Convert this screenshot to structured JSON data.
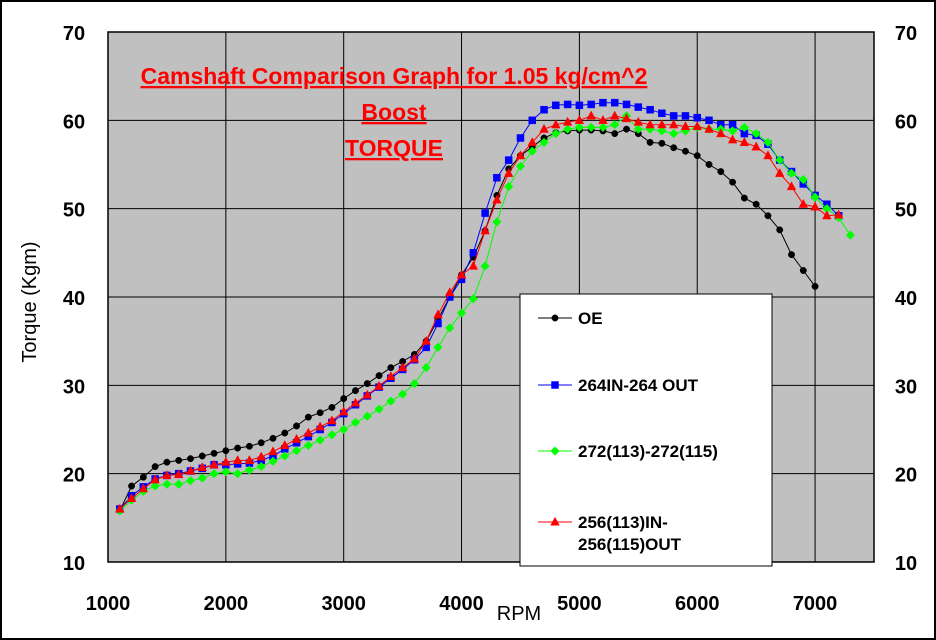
{
  "chart_data": {
    "type": "line",
    "title": [
      "Camshaft Comparison Graph for 1.05 kg/cm^2",
      "Boost",
      "TORQUE"
    ],
    "xlabel": "RPM",
    "ylabel": "Torque (Kgm)",
    "xlim": [
      1000,
      7500
    ],
    "ylim": [
      10,
      70
    ],
    "x_ticks": [
      1000,
      2000,
      3000,
      4000,
      5000,
      6000,
      7000
    ],
    "y_ticks": [
      10,
      20,
      30,
      40,
      50,
      60,
      70
    ],
    "grid": true,
    "plot_background": "#c0c0c0",
    "legend_position": "bottom-right-inside",
    "series": [
      {
        "name": "OE",
        "color": "#000000",
        "marker": "circle",
        "x": [
          1100,
          1200,
          1300,
          1400,
          1500,
          1600,
          1700,
          1800,
          1900,
          2000,
          2100,
          2200,
          2300,
          2400,
          2500,
          2600,
          2700,
          2800,
          2900,
          3000,
          3100,
          3200,
          3300,
          3400,
          3500,
          3600,
          3700,
          3800,
          3900,
          4000,
          4100,
          4200,
          4300,
          4400,
          4500,
          4600,
          4700,
          4800,
          4900,
          5000,
          5100,
          5200,
          5300,
          5400,
          5500,
          5600,
          5700,
          5800,
          5900,
          6000,
          6100,
          6200,
          6300,
          6400,
          6500,
          6600,
          6700,
          6800,
          6900,
          7000
        ],
        "y": [
          15.8,
          18.6,
          19.6,
          20.8,
          21.3,
          21.5,
          21.7,
          22.0,
          22.3,
          22.6,
          22.9,
          23.1,
          23.5,
          24.0,
          24.6,
          25.4,
          26.4,
          26.9,
          27.5,
          28.5,
          29.4,
          30.2,
          31.1,
          32.0,
          32.7,
          33.5,
          35.0,
          37.5,
          40.0,
          42.5,
          44.5,
          47.5,
          51.5,
          54.5,
          56.0,
          57.0,
          58.0,
          58.6,
          58.8,
          58.9,
          58.9,
          58.8,
          58.5,
          59.0,
          58.5,
          57.5,
          57.4,
          56.9,
          56.5,
          56.0,
          55.0,
          54.2,
          53.0,
          51.2,
          50.5,
          49.2,
          47.6,
          44.8,
          43.0,
          41.2
        ]
      },
      {
        "name": "264IN-264 OUT",
        "color": "#0000ff",
        "marker": "square",
        "x": [
          1100,
          1200,
          1300,
          1400,
          1500,
          1600,
          1700,
          1800,
          1900,
          2000,
          2100,
          2200,
          2300,
          2400,
          2500,
          2600,
          2700,
          2800,
          2900,
          3000,
          3100,
          3200,
          3300,
          3400,
          3500,
          3600,
          3700,
          3800,
          3900,
          4000,
          4100,
          4200,
          4300,
          4400,
          4500,
          4600,
          4700,
          4800,
          4900,
          5000,
          5100,
          5200,
          5300,
          5400,
          5500,
          5600,
          5700,
          5800,
          5900,
          6000,
          6100,
          6200,
          6300,
          6400,
          6500,
          6600,
          6700,
          6800,
          6900,
          7000,
          7100,
          7200
        ],
        "y": [
          16.0,
          17.5,
          18.5,
          19.4,
          19.8,
          20.0,
          20.3,
          20.6,
          21.0,
          21.0,
          21.1,
          21.2,
          21.5,
          22.0,
          22.8,
          23.5,
          24.2,
          25.0,
          25.8,
          26.8,
          27.8,
          28.8,
          29.8,
          30.8,
          31.8,
          32.9,
          34.3,
          37.0,
          40.0,
          42.0,
          45.0,
          49.5,
          53.5,
          55.5,
          58.0,
          60.0,
          61.2,
          61.7,
          61.8,
          61.7,
          61.8,
          62.0,
          62.0,
          61.8,
          61.5,
          61.2,
          60.8,
          60.5,
          60.5,
          60.3,
          60.0,
          59.5,
          59.5,
          58.5,
          58.3,
          57.3,
          55.5,
          54.2,
          52.8,
          51.5,
          50.5,
          49.2
        ]
      },
      {
        "name": "272(113)-272(115)",
        "color": "#00ff00",
        "marker": "diamond",
        "x": [
          1100,
          1200,
          1300,
          1400,
          1500,
          1600,
          1700,
          1800,
          1900,
          2000,
          2100,
          2200,
          2300,
          2400,
          2500,
          2600,
          2700,
          2800,
          2900,
          3000,
          3100,
          3200,
          3300,
          3400,
          3500,
          3600,
          3700,
          3800,
          3900,
          4000,
          4100,
          4200,
          4300,
          4400,
          4500,
          4600,
          4700,
          4800,
          4900,
          5000,
          5100,
          5200,
          5300,
          5400,
          5500,
          5600,
          5700,
          5800,
          5900,
          6000,
          6100,
          6200,
          6300,
          6400,
          6500,
          6600,
          6700,
          6800,
          6900,
          7000,
          7100,
          7200,
          7300
        ],
        "y": [
          15.8,
          17.0,
          18.0,
          18.6,
          18.8,
          18.8,
          19.2,
          19.5,
          20.0,
          20.2,
          20.0,
          20.4,
          20.8,
          21.4,
          22.0,
          22.6,
          23.2,
          23.8,
          24.4,
          25.0,
          25.8,
          26.5,
          27.3,
          28.2,
          29.0,
          30.2,
          32.0,
          34.3,
          36.5,
          38.2,
          39.8,
          43.5,
          48.5,
          52.5,
          54.8,
          56.5,
          57.5,
          58.5,
          59.0,
          59.2,
          59.2,
          59.2,
          59.5,
          60.5,
          59.0,
          59.0,
          58.8,
          58.5,
          58.8,
          59.2,
          59.0,
          59.0,
          58.8,
          59.2,
          58.5,
          57.5,
          55.5,
          54.0,
          53.3,
          51.3,
          50.0,
          49.0,
          47.0
        ]
      },
      {
        "name": "256(113)IN-\n256(115)OUT",
        "color": "#ff0000",
        "marker": "triangle",
        "x": [
          1100,
          1200,
          1300,
          1400,
          1500,
          1600,
          1700,
          1800,
          1900,
          2000,
          2100,
          2200,
          2300,
          2400,
          2500,
          2600,
          2700,
          2800,
          2900,
          3000,
          3100,
          3200,
          3300,
          3400,
          3500,
          3600,
          3700,
          3800,
          3900,
          4000,
          4100,
          4200,
          4300,
          4400,
          4500,
          4600,
          4700,
          4800,
          4900,
          5000,
          5100,
          5200,
          5300,
          5400,
          5500,
          5600,
          5700,
          5800,
          5900,
          6000,
          6100,
          6200,
          6300,
          6400,
          6500,
          6600,
          6700,
          6800,
          6900,
          7000,
          7100,
          7200
        ],
        "y": [
          16.0,
          17.2,
          18.3,
          19.3,
          19.8,
          19.9,
          20.3,
          20.7,
          21.0,
          21.3,
          21.5,
          21.5,
          21.9,
          22.5,
          23.2,
          23.9,
          24.6,
          25.3,
          26.0,
          27.0,
          28.0,
          28.9,
          29.9,
          31.0,
          32.0,
          33.0,
          35.0,
          38.0,
          40.5,
          42.5,
          43.5,
          47.5,
          51.0,
          54.0,
          56.0,
          57.5,
          59.0,
          59.5,
          59.8,
          60.0,
          60.5,
          60.0,
          60.5,
          60.2,
          59.8,
          59.5,
          59.5,
          59.5,
          59.3,
          59.3,
          59.0,
          58.5,
          57.8,
          57.5,
          57.0,
          56.0,
          54.0,
          52.5,
          50.5,
          50.2,
          49.2,
          49.3
        ]
      }
    ]
  }
}
